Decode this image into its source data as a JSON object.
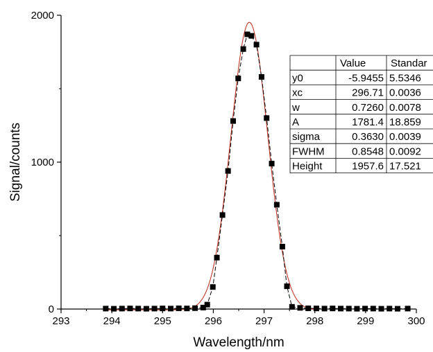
{
  "chart_data": {
    "type": "scatter",
    "xlabel": "Wavelength/nm",
    "ylabel": "Signal/counts",
    "xlim": [
      293,
      300
    ],
    "ylim": [
      0,
      2000
    ],
    "x_ticks": [
      "293",
      "294",
      "295",
      "296",
      "297",
      "298",
      "299",
      "300"
    ],
    "y_ticks": [
      "0",
      "1000",
      "2000"
    ],
    "grid": false,
    "series": [
      {
        "kind": "points",
        "marker": "square",
        "color": "#000000",
        "x": [
          293.88,
          294.04,
          294.2,
          294.36,
          294.52,
          294.68,
          294.84,
          295.0,
          295.16,
          295.32,
          295.48,
          295.64,
          295.8,
          295.88,
          295.99,
          296.07,
          296.18,
          296.29,
          296.39,
          296.49,
          296.59,
          296.67,
          296.75,
          296.85,
          296.95,
          297.05,
          297.15,
          297.25,
          297.36,
          297.45,
          297.55,
          297.71,
          297.87,
          298.03,
          298.19,
          298.35,
          298.51,
          298.67,
          298.83,
          298.99,
          299.15,
          299.31,
          299.47,
          299.63,
          299.83
        ],
        "y": [
          3,
          2,
          3,
          4,
          3,
          2,
          3,
          4,
          3,
          5,
          4,
          6,
          10,
          30,
          150,
          350,
          640,
          940,
          1280,
          1570,
          1770,
          1870,
          1860,
          1800,
          1580,
          1300,
          990,
          710,
          425,
          155,
          15,
          8,
          5,
          4,
          3,
          4,
          3,
          3,
          2,
          3,
          3,
          2,
          3,
          2,
          3
        ]
      },
      {
        "kind": "fit",
        "model": "gauss",
        "color": "#c0392b",
        "y0": -5.9455,
        "xc": 296.71,
        "w": 0.726,
        "A": 1781.4
      }
    ],
    "table": {
      "headers": [
        "",
        "Value",
        "Standar"
      ],
      "rows": [
        [
          "y0",
          "-5.9455",
          "5.5346"
        ],
        [
          "xc",
          "296.71",
          "0.0036"
        ],
        [
          "w",
          "0.7260",
          "0.0078"
        ],
        [
          "A",
          "1781.4",
          "18.859"
        ],
        [
          "sigma",
          "0.3630",
          "0.0039"
        ],
        [
          "FWHM",
          "0.8548",
          "0.0092"
        ],
        [
          "Height",
          "1957.6",
          "17.521"
        ]
      ]
    }
  }
}
